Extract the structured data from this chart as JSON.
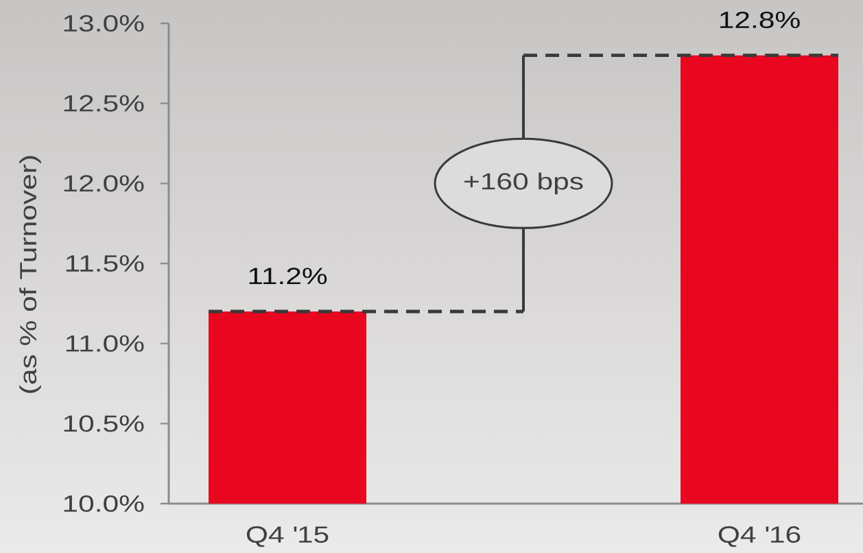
{
  "chart_data": {
    "type": "bar",
    "ylabel": "(as % of Turnover)",
    "categories": [
      "Q4 '15",
      "Q4 '16"
    ],
    "values": [
      11.2,
      12.8
    ],
    "color": "#e9061f",
    "value_labels": [
      "11.2%",
      "12.8%"
    ],
    "ylim": [
      10.0,
      13.0
    ],
    "yticks": [
      {
        "value": 10.0,
        "label": "10.0%"
      },
      {
        "value": 10.5,
        "label": "10.5%"
      },
      {
        "value": 11.0,
        "label": "11.0%"
      },
      {
        "value": 11.5,
        "label": "11.5%"
      },
      {
        "value": 12.0,
        "label": "12.0%"
      },
      {
        "value": 12.5,
        "label": "12.5%"
      },
      {
        "value": 13.0,
        "label": "13.0%"
      }
    ],
    "ref_lines": [
      {
        "axis": "y",
        "value": 11.2,
        "color": "#3a3a3a",
        "line_style": "dashed"
      },
      {
        "axis": "y",
        "value": 12.8,
        "color": "#3a3a3a",
        "line_style": "dashed"
      }
    ],
    "annotations": [
      "+160 bps"
    ]
  }
}
